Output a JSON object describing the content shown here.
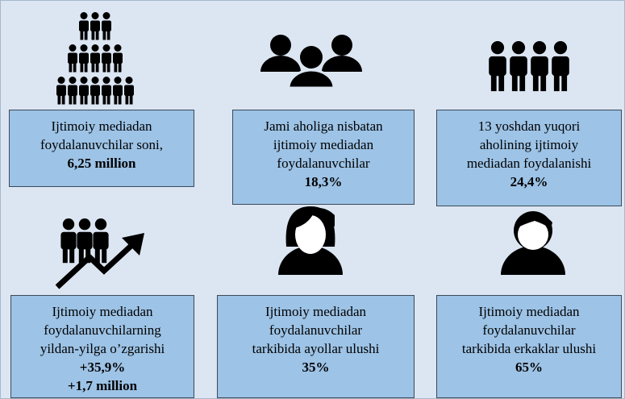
{
  "cards": [
    {
      "lines": [
        "Ijtimoiy mediadan",
        "foydalanuvchilar soni,"
      ],
      "values": [
        "6,25 million"
      ]
    },
    {
      "lines": [
        "Jami aholiga nisbatan",
        "ijtimoiy mediadan",
        "foydalanuvchilar"
      ],
      "values": [
        "18,3%"
      ]
    },
    {
      "lines": [
        "13 yoshdan yuqori",
        "aholining ijtimoiy",
        "mediadan foydalanishi"
      ],
      "values": [
        "24,4%"
      ]
    },
    {
      "lines": [
        "Ijtimoiy mediadan",
        "foydalanuvchilarning",
        "yildan-yilga o’zgarishi"
      ],
      "values": [
        "+35,9%",
        "+1,7 million"
      ]
    },
    {
      "lines": [
        "Ijtimoiy mediadan",
        "foydalanuvchilar",
        "tarkibida ayollar ulushi"
      ],
      "values": [
        "35%"
      ]
    },
    {
      "lines": [
        "Ijtimoiy mediadan",
        "foydalanuvchilar",
        "tarkibida erkaklar ulushi"
      ],
      "values": [
        "65%"
      ]
    }
  ]
}
